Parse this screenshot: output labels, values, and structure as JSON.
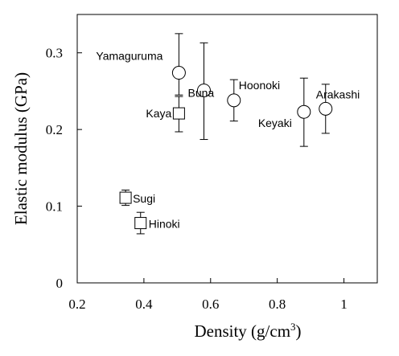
{
  "chart_data": {
    "type": "scatter",
    "title": "",
    "xlabel": "Density (g/cm",
    "xlabel_sup": "3",
    "xlabel_close": ")",
    "ylabel": "Elastic modulus (GPa)",
    "xlim": [
      0.2,
      1.1
    ],
    "ylim": [
      0,
      0.35
    ],
    "xticks": [
      0.2,
      0.4,
      0.6,
      0.8,
      1.0
    ],
    "xtick_labels": [
      "0.2",
      "0.4",
      "0.6",
      "0.8",
      "1"
    ],
    "yticks": [
      0,
      0.1,
      0.2,
      0.3
    ],
    "ytick_labels": [
      "0",
      "0.1",
      "0.2",
      "0.3"
    ],
    "grid": false,
    "series": [
      {
        "marker": "square",
        "points": [
          {
            "label": "Kaya",
            "x": 0.505,
            "y": 0.221,
            "err_low": 0.197,
            "err_high": 0.243
          },
          {
            "label": "Sugi",
            "x": 0.345,
            "y": 0.111,
            "err_low": 0.101,
            "err_high": 0.121
          },
          {
            "label": "Hinoki",
            "x": 0.39,
            "y": 0.078,
            "err_low": 0.064,
            "err_high": 0.092
          }
        ]
      },
      {
        "marker": "circle",
        "points": [
          {
            "label": "Yamaguruma",
            "x": 0.505,
            "y": 0.274,
            "err_low": 0.245,
            "err_high": 0.325
          },
          {
            "label": "Buna",
            "x": 0.58,
            "y": 0.251,
            "err_low": 0.187,
            "err_high": 0.313
          },
          {
            "label": "Hoonoki",
            "x": 0.67,
            "y": 0.238,
            "err_low": 0.211,
            "err_high": 0.265
          },
          {
            "label": "Keyaki",
            "x": 0.88,
            "y": 0.223,
            "err_low": 0.178,
            "err_high": 0.267
          },
          {
            "label": "Arakashi",
            "x": 0.945,
            "y": 0.227,
            "err_low": 0.195,
            "err_high": 0.259
          }
        ]
      }
    ]
  }
}
